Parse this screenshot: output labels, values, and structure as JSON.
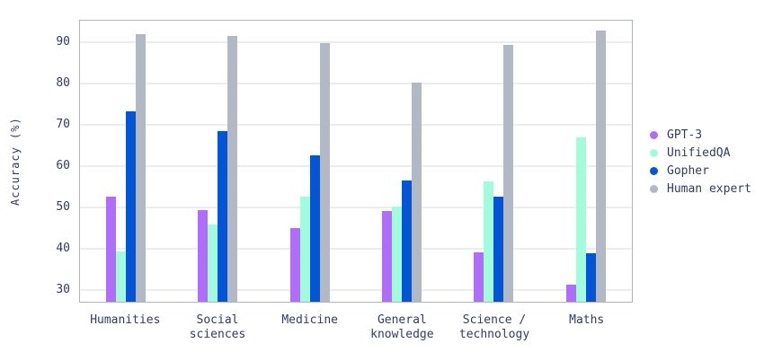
{
  "chart_data": {
    "type": "bar",
    "title": "",
    "xlabel": "",
    "ylabel": "Accuracy (%)",
    "categories": [
      "Humanities",
      "Social sciences",
      "Medicine",
      "General knowledge",
      "Science / technology",
      "Maths"
    ],
    "series": [
      {
        "name": "GPT-3",
        "color": "#b16cf9",
        "values": [
          52.2,
          48.9,
          44.6,
          48.7,
          38.7,
          31.0
        ]
      },
      {
        "name": "UnifiedQA",
        "color": "#a2fcdc",
        "values": [
          39.0,
          45.4,
          52.2,
          49.8,
          55.9,
          66.5
        ]
      },
      {
        "name": "Gopher",
        "color": "#0355d8",
        "values": [
          72.8,
          68.2,
          62.2,
          56.2,
          52.3,
          38.5
        ]
      },
      {
        "name": "Human expert",
        "color": "#b2b9c4",
        "values": [
          91.5,
          91.1,
          89.5,
          79.9,
          88.9,
          92.5
        ]
      }
    ],
    "yticks": [
      30,
      40,
      50,
      60,
      70,
      80,
      90
    ],
    "ylim": [
      26.8,
      95.3
    ],
    "grid": true,
    "legend_position": "right",
    "colors": {
      "axis_border": "#aeb6c1",
      "gridline": "#ebedf3",
      "text": "#313c5e",
      "background": "#ffffff"
    }
  }
}
